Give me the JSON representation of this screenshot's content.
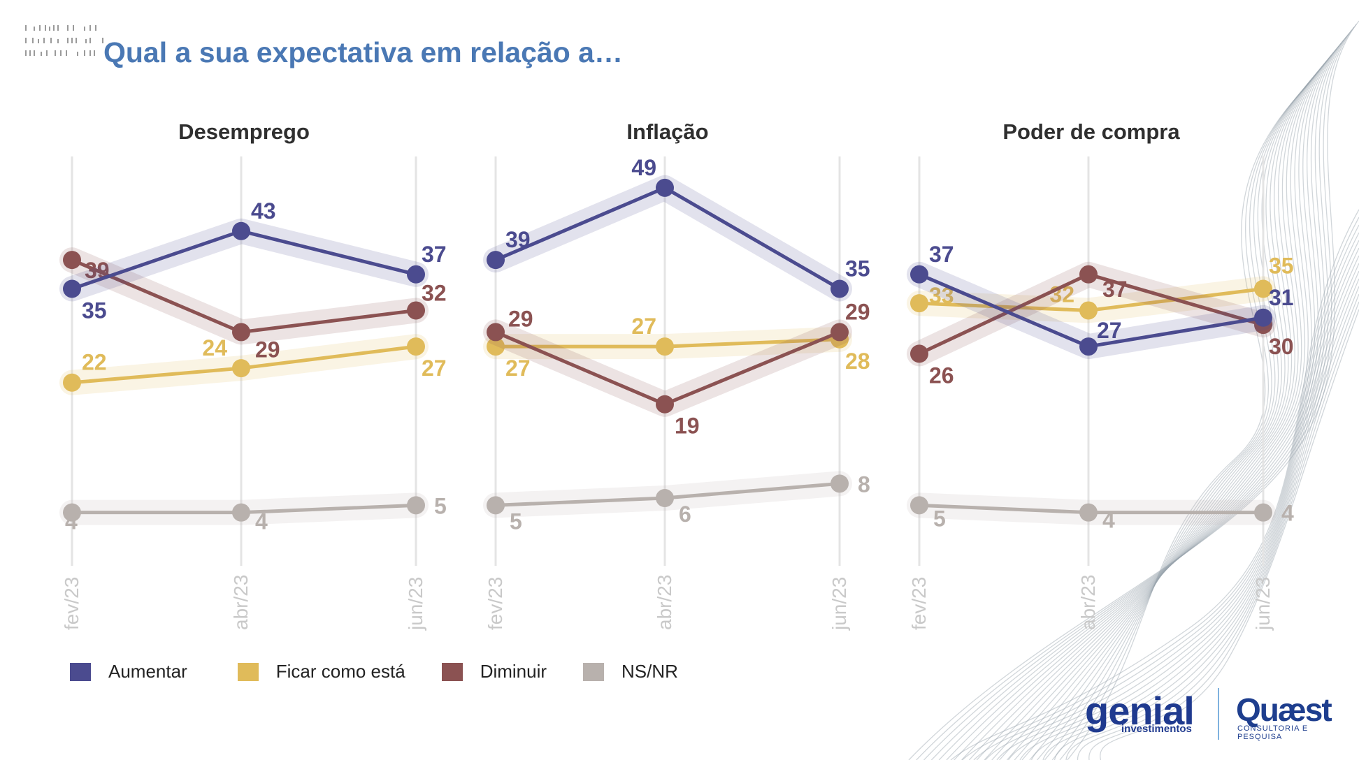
{
  "page": {
    "title": "Qual a sua expectativa em relação a…"
  },
  "colors": {
    "aumentar": "#4b4b8f",
    "ficar": "#e0bb5a",
    "diminuir": "#8b5252",
    "nsnr": "#b8b1ad",
    "title": "#4a78b4",
    "grid": "#e4e4e4",
    "tick": "#c9c9c9"
  },
  "legend": [
    {
      "label": "Aumentar",
      "color": "#4b4b8f"
    },
    {
      "label": "Ficar como está",
      "color": "#e0bb5a"
    },
    {
      "label": "Diminuir",
      "color": "#8b5252"
    },
    {
      "label": "NS/NR",
      "color": "#b8b1ad"
    }
  ],
  "logos": {
    "genial": "genial",
    "genial_sub": "investimentos",
    "quaest": "Quæst",
    "quaest_sub": "CONSULTORIA E PESQUISA"
  },
  "chart_data": [
    {
      "type": "line",
      "title": "Desemprego",
      "categories": [
        "fev/23",
        "abr/23",
        "jun/23"
      ],
      "series": [
        {
          "name": "Aumentar",
          "values": [
            35,
            43,
            37
          ]
        },
        {
          "name": "Ficar como está",
          "values": [
            22,
            24,
            27
          ]
        },
        {
          "name": "Diminuir",
          "values": [
            39,
            29,
            32
          ]
        },
        {
          "name": "NS/NR",
          "values": [
            4,
            4,
            5
          ]
        }
      ],
      "ylim": [
        0,
        55
      ],
      "grid": "vertical"
    },
    {
      "type": "line",
      "title": "Inflação",
      "categories": [
        "fev/23",
        "abr/23",
        "jun/23"
      ],
      "series": [
        {
          "name": "Aumentar",
          "values": [
            39,
            49,
            35
          ]
        },
        {
          "name": "Ficar como está",
          "values": [
            27,
            27,
            28
          ]
        },
        {
          "name": "Diminuir",
          "values": [
            29,
            19,
            29
          ]
        },
        {
          "name": "NS/NR",
          "values": [
            5,
            6,
            8
          ]
        }
      ],
      "ylim": [
        0,
        55
      ],
      "grid": "vertical"
    },
    {
      "type": "line",
      "title": "Poder de compra",
      "categories": [
        "fev/23",
        "abr/23",
        "jun/23"
      ],
      "series": [
        {
          "name": "Aumentar",
          "values": [
            37,
            27,
            31
          ]
        },
        {
          "name": "Ficar como está",
          "values": [
            33,
            32,
            35
          ]
        },
        {
          "name": "Diminuir",
          "values": [
            26,
            37,
            30
          ]
        },
        {
          "name": "NS/NR",
          "values": [
            5,
            4,
            4
          ]
        }
      ],
      "ylim": [
        0,
        55
      ],
      "grid": "vertical"
    }
  ]
}
